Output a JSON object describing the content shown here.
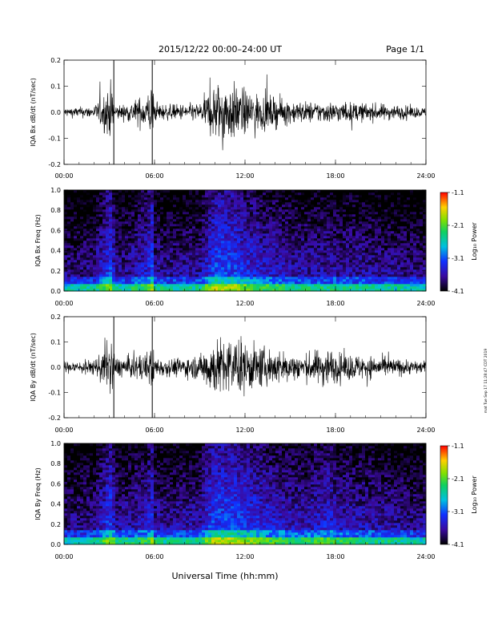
{
  "header": {
    "title": "2015/12/22  00:00–24:00 UT",
    "page": "Page 1/1"
  },
  "footer": {
    "xlabel": "Universal Time (hh:mm)"
  },
  "side_note": "mat Tue Sep 17 11:28:47 CDT 2019",
  "colorbar": {
    "label": "Log₁₀ Power",
    "ticks": [
      "-1.1",
      "-2.1",
      "-3.1",
      "-4.1"
    ],
    "range": [
      -4.1,
      -1.1
    ]
  },
  "x_ticks": [
    "00:00",
    "06:00",
    "12:00",
    "18:00",
    "24:00"
  ],
  "chart_data": [
    {
      "type": "line",
      "ylabel": "IQA Bx dB/dt (nT/sec)",
      "y_ticks": [
        "0.2",
        "0.1",
        "0.0",
        "-0.1",
        "-0.2"
      ],
      "xlim": [
        0,
        24
      ],
      "ylim": [
        -0.2,
        0.2
      ],
      "x_units": "hours UT",
      "activity_envelope": {
        "x": [
          0,
          2,
          3.2,
          3.35,
          4,
          5.5,
          5.85,
          6,
          7,
          9,
          10,
          10.5,
          11,
          12,
          13,
          14,
          15,
          16,
          18,
          20,
          22,
          24
        ],
        "amplitude": [
          0.03,
          0.04,
          0.2,
          0.05,
          0.05,
          0.12,
          0.2,
          0.06,
          0.05,
          0.06,
          0.2,
          0.2,
          0.2,
          0.15,
          0.12,
          0.1,
          0.08,
          0.07,
          0.07,
          0.06,
          0.05,
          0.03
        ]
      }
    },
    {
      "type": "heatmap",
      "ylabel": "IQA Bx Freq (Hz)",
      "y_ticks": [
        "1.0",
        "0.8",
        "0.6",
        "0.4",
        "0.2",
        "0.0"
      ],
      "xlim": [
        0,
        24
      ],
      "ylim": [
        0,
        1.0
      ],
      "zlim": [
        -4.1,
        -1.1
      ]
    },
    {
      "type": "line",
      "ylabel": "IQA By dB/dt (nT/sec)",
      "y_ticks": [
        "0.2",
        "0.1",
        "0.0",
        "-0.1",
        "-0.2"
      ],
      "xlim": [
        0,
        24
      ],
      "ylim": [
        -0.2,
        0.2
      ],
      "x_units": "hours UT",
      "activity_envelope": {
        "x": [
          0,
          2,
          3.2,
          3.35,
          4,
          5.5,
          5.85,
          6,
          7,
          9,
          9.8,
          10.5,
          11,
          12,
          13,
          14,
          15,
          16,
          17.5,
          18,
          20,
          22,
          24
        ],
        "amplitude": [
          0.04,
          0.05,
          0.2,
          0.07,
          0.07,
          0.1,
          0.18,
          0.07,
          0.06,
          0.08,
          0.2,
          0.2,
          0.2,
          0.18,
          0.14,
          0.12,
          0.1,
          0.09,
          0.14,
          0.1,
          0.08,
          0.06,
          0.04
        ]
      }
    },
    {
      "type": "heatmap",
      "ylabel": "IQA By Freq (Hz)",
      "y_ticks": [
        "1.0",
        "0.8",
        "0.6",
        "0.4",
        "0.2",
        "0.0"
      ],
      "xlim": [
        0,
        24
      ],
      "ylim": [
        0,
        1.0
      ],
      "zlim": [
        -4.1,
        -1.1
      ]
    }
  ]
}
